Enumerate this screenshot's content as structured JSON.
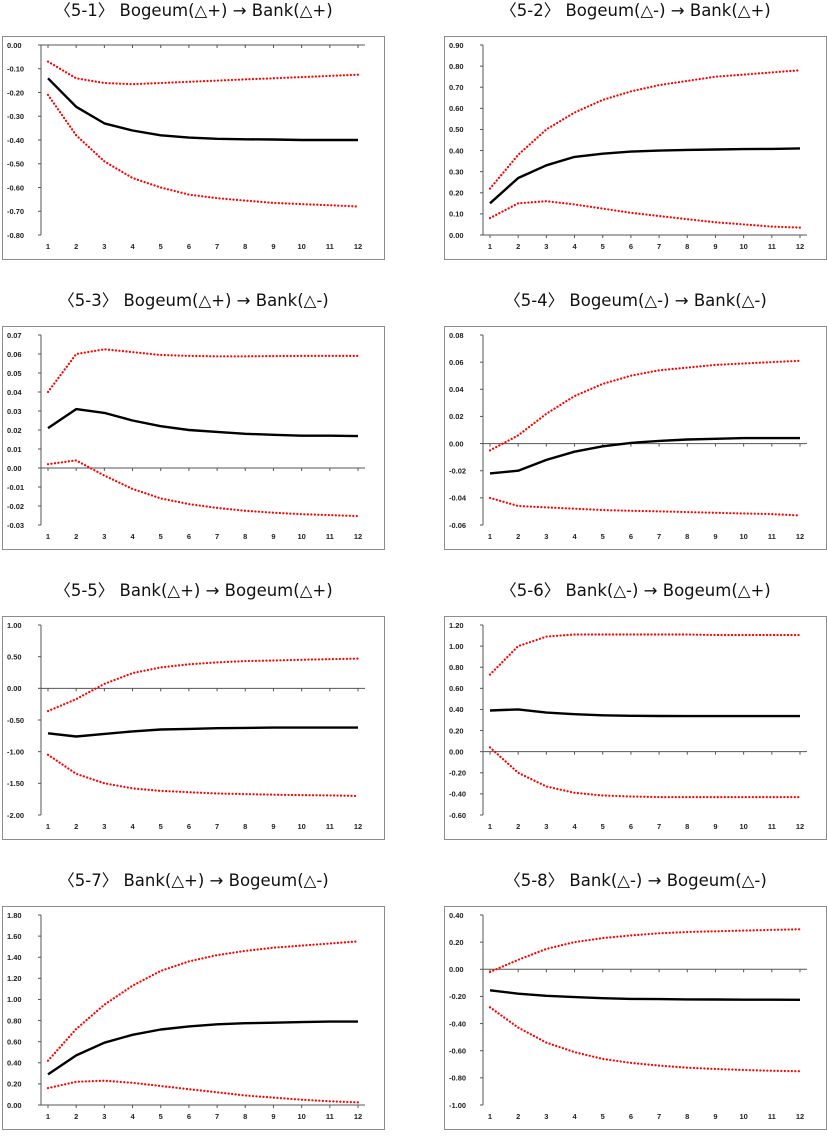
{
  "chart_data": [
    {
      "type": "line",
      "title": "〈5-1〉 Bogeum(△+) → Bank(△+)",
      "categories": [
        "1",
        "2",
        "3",
        "4",
        "5",
        "6",
        "7",
        "8",
        "9",
        "10",
        "11",
        "12"
      ],
      "ylim": [
        -0.8,
        0.0
      ],
      "yticks": [
        "0.00",
        "-0.10",
        "-0.20",
        "-0.30",
        "-0.40",
        "-0.50",
        "-0.60",
        "-0.70",
        "-0.80"
      ],
      "ytick_values": [
        0.0,
        -0.1,
        -0.2,
        -0.3,
        -0.4,
        -0.5,
        -0.6,
        -0.7,
        -0.8
      ],
      "series": [
        {
          "style": "solid",
          "color": "#000000",
          "values": [
            -0.14,
            -0.26,
            -0.33,
            -0.36,
            -0.38,
            -0.39,
            -0.395,
            -0.397,
            -0.398,
            -0.4,
            -0.4,
            -0.4
          ]
        },
        {
          "style": "dotted",
          "color": "#ff0000",
          "values": [
            -0.07,
            -0.14,
            -0.16,
            -0.165,
            -0.16,
            -0.155,
            -0.15,
            -0.145,
            -0.14,
            -0.135,
            -0.13,
            -0.125
          ]
        },
        {
          "style": "dotted",
          "color": "#ff0000",
          "values": [
            -0.21,
            -0.38,
            -0.49,
            -0.56,
            -0.6,
            -0.63,
            -0.645,
            -0.655,
            -0.665,
            -0.67,
            -0.675,
            -0.68
          ]
        }
      ]
    },
    {
      "type": "line",
      "title": "〈5-2〉 Bogeum(△-) → Bank(△+)",
      "categories": [
        "1",
        "2",
        "3",
        "4",
        "5",
        "6",
        "7",
        "8",
        "9",
        "10",
        "11",
        "12"
      ],
      "ylim": [
        0.0,
        0.9
      ],
      "yticks": [
        "0.90",
        "0.80",
        "0.70",
        "0.60",
        "0.50",
        "0.40",
        "0.30",
        "0.20",
        "0.10",
        "0.00"
      ],
      "ytick_values": [
        0.9,
        0.8,
        0.7,
        0.6,
        0.5,
        0.4,
        0.3,
        0.2,
        0.1,
        0.0
      ],
      "series": [
        {
          "style": "solid",
          "color": "#000000",
          "values": [
            0.15,
            0.27,
            0.33,
            0.37,
            0.385,
            0.395,
            0.4,
            0.403,
            0.405,
            0.407,
            0.408,
            0.41
          ]
        },
        {
          "style": "dotted",
          "color": "#ff0000",
          "values": [
            0.22,
            0.38,
            0.5,
            0.58,
            0.64,
            0.68,
            0.71,
            0.73,
            0.75,
            0.76,
            0.77,
            0.78
          ]
        },
        {
          "style": "dotted",
          "color": "#ff0000",
          "values": [
            0.08,
            0.15,
            0.16,
            0.145,
            0.125,
            0.105,
            0.09,
            0.075,
            0.06,
            0.05,
            0.04,
            0.035
          ]
        }
      ]
    },
    {
      "type": "line",
      "title": "〈5-3〉 Bogeum(△+) → Bank(△-)",
      "categories": [
        "1",
        "2",
        "3",
        "4",
        "5",
        "6",
        "7",
        "8",
        "9",
        "10",
        "11",
        "12"
      ],
      "ylim": [
        -0.03,
        0.07
      ],
      "yticks": [
        "0.07",
        "0.06",
        "0.05",
        "0.04",
        "0.03",
        "0.02",
        "0.01",
        "0.00",
        "-0.01",
        "-0.02",
        "-0.03"
      ],
      "ytick_values": [
        0.07,
        0.06,
        0.05,
        0.04,
        0.03,
        0.02,
        0.01,
        0.0,
        -0.01,
        -0.02,
        -0.03
      ],
      "series": [
        {
          "style": "solid",
          "color": "#000000",
          "values": [
            0.021,
            0.031,
            0.029,
            0.025,
            0.022,
            0.02,
            0.019,
            0.018,
            0.0175,
            0.017,
            0.017,
            0.0168
          ]
        },
        {
          "style": "dotted",
          "color": "#ff0000",
          "values": [
            0.04,
            0.06,
            0.0625,
            0.061,
            0.0595,
            0.059,
            0.0588,
            0.0588,
            0.0589,
            0.059,
            0.059,
            0.059
          ]
        },
        {
          "style": "dotted",
          "color": "#ff0000",
          "values": [
            0.002,
            0.004,
            -0.004,
            -0.011,
            -0.016,
            -0.019,
            -0.021,
            -0.0225,
            -0.0235,
            -0.0243,
            -0.0248,
            -0.0253
          ]
        }
      ]
    },
    {
      "type": "line",
      "title": "〈5-4〉 Bogeum(△-) → Bank(△-)",
      "categories": [
        "1",
        "2",
        "3",
        "4",
        "5",
        "6",
        "7",
        "8",
        "9",
        "10",
        "11",
        "12"
      ],
      "ylim": [
        -0.06,
        0.08
      ],
      "yticks": [
        "0.08",
        "0.06",
        "0.04",
        "0.02",
        "0.00",
        "-0.02",
        "-0.04",
        "-0.06"
      ],
      "ytick_values": [
        0.08,
        0.06,
        0.04,
        0.02,
        0.0,
        -0.02,
        -0.04,
        -0.06
      ],
      "series": [
        {
          "style": "solid",
          "color": "#000000",
          "values": [
            -0.022,
            -0.02,
            -0.012,
            -0.006,
            -0.002,
            0.0005,
            0.002,
            0.003,
            0.0035,
            0.004,
            0.004,
            0.004
          ]
        },
        {
          "style": "dotted",
          "color": "#ff0000",
          "values": [
            -0.005,
            0.006,
            0.022,
            0.035,
            0.044,
            0.05,
            0.054,
            0.056,
            0.058,
            0.059,
            0.06,
            0.061
          ]
        },
        {
          "style": "dotted",
          "color": "#ff0000",
          "values": [
            -0.04,
            -0.046,
            -0.047,
            -0.048,
            -0.049,
            -0.0495,
            -0.05,
            -0.0505,
            -0.051,
            -0.0515,
            -0.052,
            -0.053
          ]
        }
      ]
    },
    {
      "type": "line",
      "title": "〈5-5〉 Bank(△+) → Bogeum(△+)",
      "categories": [
        "1",
        "2",
        "3",
        "4",
        "5",
        "6",
        "7",
        "8",
        "9",
        "10",
        "11",
        "12"
      ],
      "ylim": [
        -2.0,
        1.0
      ],
      "yticks": [
        "1.00",
        "0.50",
        "0.00",
        "-0.50",
        "-1.00",
        "-1.50",
        "-2.00"
      ],
      "ytick_values": [
        1.0,
        0.5,
        0.0,
        -0.5,
        -1.0,
        -1.5,
        -2.0
      ],
      "series": [
        {
          "style": "solid",
          "color": "#000000",
          "values": [
            -0.71,
            -0.76,
            -0.72,
            -0.68,
            -0.65,
            -0.64,
            -0.63,
            -0.625,
            -0.62,
            -0.62,
            -0.62,
            -0.62
          ]
        },
        {
          "style": "dotted",
          "color": "#ff0000",
          "values": [
            -0.36,
            -0.17,
            0.07,
            0.24,
            0.33,
            0.38,
            0.41,
            0.43,
            0.44,
            0.45,
            0.46,
            0.47
          ]
        },
        {
          "style": "dotted",
          "color": "#ff0000",
          "values": [
            -1.05,
            -1.35,
            -1.5,
            -1.58,
            -1.62,
            -1.64,
            -1.66,
            -1.67,
            -1.68,
            -1.685,
            -1.69,
            -1.7
          ]
        }
      ]
    },
    {
      "type": "line",
      "title": "〈5-6〉 Bank(△-) → Bogeum(△+)",
      "categories": [
        "1",
        "2",
        "3",
        "4",
        "5",
        "6",
        "7",
        "8",
        "9",
        "10",
        "11",
        "12"
      ],
      "ylim": [
        -0.6,
        1.2
      ],
      "yticks": [
        "1.20",
        "1.00",
        "0.80",
        "0.60",
        "0.40",
        "0.20",
        "0.00",
        "-0.20",
        "-0.40",
        "-0.60"
      ],
      "ytick_values": [
        1.2,
        1.0,
        0.8,
        0.6,
        0.4,
        0.2,
        0.0,
        -0.2,
        -0.4,
        -0.6
      ],
      "series": [
        {
          "style": "solid",
          "color": "#000000",
          "values": [
            0.39,
            0.4,
            0.37,
            0.355,
            0.345,
            0.34,
            0.338,
            0.337,
            0.337,
            0.337,
            0.337,
            0.337
          ]
        },
        {
          "style": "dotted",
          "color": "#ff0000",
          "values": [
            0.73,
            1.0,
            1.09,
            1.11,
            1.11,
            1.11,
            1.11,
            1.11,
            1.105,
            1.105,
            1.105,
            1.105
          ]
        },
        {
          "style": "dotted",
          "color": "#ff0000",
          "values": [
            0.04,
            -0.2,
            -0.33,
            -0.39,
            -0.415,
            -0.425,
            -0.43,
            -0.43,
            -0.43,
            -0.43,
            -0.43,
            -0.43
          ]
        }
      ]
    },
    {
      "type": "line",
      "title": "〈5-7〉 Bank(△+) → Bogeum(△-)",
      "categories": [
        "1",
        "2",
        "3",
        "4",
        "5",
        "6",
        "7",
        "8",
        "9",
        "10",
        "11",
        "12"
      ],
      "ylim": [
        0.0,
        1.8
      ],
      "yticks": [
        "1.80",
        "1.60",
        "1.40",
        "1.20",
        "1.00",
        "0.80",
        "0.60",
        "0.40",
        "0.20",
        "0.00"
      ],
      "ytick_values": [
        1.8,
        1.6,
        1.4,
        1.2,
        1.0,
        0.8,
        0.6,
        0.4,
        0.2,
        0.0
      ],
      "series": [
        {
          "style": "solid",
          "color": "#000000",
          "values": [
            0.29,
            0.47,
            0.59,
            0.665,
            0.715,
            0.745,
            0.765,
            0.775,
            0.78,
            0.785,
            0.79,
            0.79
          ]
        },
        {
          "style": "dotted",
          "color": "#ff0000",
          "values": [
            0.42,
            0.72,
            0.95,
            1.13,
            1.27,
            1.36,
            1.42,
            1.46,
            1.49,
            1.51,
            1.53,
            1.55
          ]
        },
        {
          "style": "dotted",
          "color": "#ff0000",
          "values": [
            0.16,
            0.22,
            0.23,
            0.21,
            0.18,
            0.15,
            0.12,
            0.09,
            0.07,
            0.05,
            0.035,
            0.025
          ]
        }
      ]
    },
    {
      "type": "line",
      "title": "〈5-8〉 Bank(△-) → Bogeum(△-)",
      "categories": [
        "1",
        "2",
        "3",
        "4",
        "5",
        "6",
        "7",
        "8",
        "9",
        "10",
        "11",
        "12"
      ],
      "ylim": [
        -1.0,
        0.4
      ],
      "yticks": [
        "0.40",
        "0.20",
        "0.00",
        "-0.20",
        "-0.40",
        "-0.60",
        "-0.80",
        "-1.00"
      ],
      "ytick_values": [
        0.4,
        0.2,
        0.0,
        -0.2,
        -0.4,
        -0.6,
        -0.8,
        -1.0
      ],
      "series": [
        {
          "style": "solid",
          "color": "#000000",
          "values": [
            -0.155,
            -0.18,
            -0.195,
            -0.205,
            -0.213,
            -0.218,
            -0.22,
            -0.222,
            -0.223,
            -0.224,
            -0.224,
            -0.225
          ]
        },
        {
          "style": "dotted",
          "color": "#ff0000",
          "values": [
            -0.02,
            0.07,
            0.15,
            0.2,
            0.23,
            0.25,
            0.265,
            0.275,
            0.28,
            0.285,
            0.29,
            0.295
          ]
        },
        {
          "style": "dotted",
          "color": "#ff0000",
          "values": [
            -0.28,
            -0.43,
            -0.54,
            -0.61,
            -0.66,
            -0.69,
            -0.71,
            -0.725,
            -0.735,
            -0.742,
            -0.748,
            -0.752
          ]
        }
      ]
    }
  ]
}
